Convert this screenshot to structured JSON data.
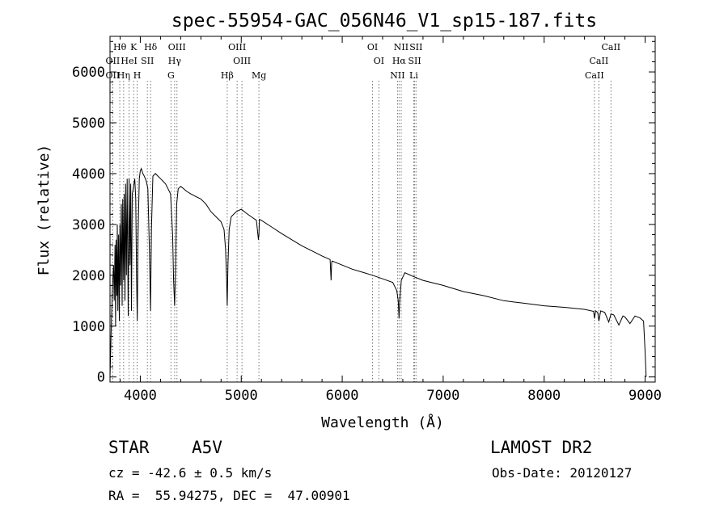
{
  "chart_data": {
    "type": "line",
    "title": "spec-55954-GAC_056N46_V1_sp15-187.fits",
    "xlabel": "Wavelength (Å)",
    "ylabel": "Flux (relative)",
    "xlim": [
      3700,
      9100
    ],
    "ylim": [
      -100,
      6700
    ],
    "xticks": [
      4000,
      5000,
      6000,
      7000,
      8000,
      9000
    ],
    "yticks": [
      0,
      1000,
      2000,
      3000,
      4000,
      5000,
      6000
    ],
    "spectrum": {
      "x": [
        3700,
        3715,
        3725,
        3735,
        3742,
        3750,
        3755,
        3760,
        3768,
        3772,
        3778,
        3785,
        3792,
        3798,
        3805,
        3812,
        3820,
        3826,
        3835,
        3840,
        3848,
        3855,
        3863,
        3870,
        3880,
        3889,
        3898,
        3905,
        3912,
        3920,
        3930,
        3945,
        3955,
        3963,
        3970,
        3978,
        3990,
        4000,
        4010,
        4025,
        4040,
        4060,
        4075,
        4090,
        4101,
        4110,
        4125,
        4150,
        4175,
        4200,
        4225,
        4250,
        4275,
        4300,
        4320,
        4330,
        4340,
        4350,
        4360,
        4375,
        4400,
        4430,
        4460,
        4500,
        4550,
        4600,
        4650,
        4700,
        4750,
        4800,
        4830,
        4845,
        4855,
        4861,
        4868,
        4880,
        4900,
        4950,
        5000,
        5050,
        5100,
        5150,
        5170,
        5175,
        5180,
        5200,
        5300,
        5400,
        5500,
        5600,
        5700,
        5800,
        5880,
        5890,
        5895,
        5900,
        6000,
        6100,
        6200,
        6300,
        6400,
        6500,
        6540,
        6555,
        6563,
        6570,
        6585,
        6620,
        6700,
        6800,
        7000,
        7200,
        7400,
        7600,
        7800,
        8000,
        8200,
        8400,
        8490,
        8498,
        8510,
        8530,
        8542,
        8560,
        8600,
        8640,
        8662,
        8690,
        8740,
        8780,
        8800,
        8850,
        8900,
        8950,
        8985,
        9000,
        9010
      ],
      "y": [
        0,
        1200,
        1800,
        2200,
        1500,
        2600,
        1000,
        2700,
        1600,
        3000,
        1300,
        2800,
        1100,
        3000,
        1800,
        3400,
        1400,
        3500,
        1900,
        3600,
        1500,
        3800,
        2000,
        3900,
        1200,
        3900,
        2200,
        3800,
        1300,
        3600,
        3700,
        3900,
        3500,
        2000,
        1100,
        2800,
        3900,
        4050,
        4100,
        4000,
        3950,
        3850,
        3700,
        2500,
        1300,
        2900,
        3950,
        4000,
        3950,
        3900,
        3850,
        3800,
        3700,
        3600,
        2800,
        1900,
        1400,
        2200,
        3400,
        3700,
        3750,
        3700,
        3650,
        3600,
        3550,
        3500,
        3400,
        3250,
        3150,
        3050,
        2900,
        2500,
        1900,
        1400,
        2200,
        2900,
        3150,
        3250,
        3300,
        3220,
        3150,
        3080,
        2700,
        2800,
        3100,
        3080,
        2950,
        2820,
        2700,
        2580,
        2480,
        2380,
        2310,
        1900,
        2250,
        2280,
        2200,
        2120,
        2060,
        2000,
        1930,
        1860,
        1700,
        1500,
        1150,
        1500,
        1900,
        2050,
        1980,
        1900,
        1800,
        1680,
        1600,
        1500,
        1450,
        1400,
        1370,
        1330,
        1290,
        1150,
        1300,
        1270,
        1100,
        1300,
        1270,
        1080,
        1240,
        1220,
        1020,
        1200,
        1180,
        1050,
        1200,
        1160,
        1100,
        500,
        0
      ]
    },
    "lines": [
      {
        "name": "Hθ",
        "wl": 3797,
        "row": 0
      },
      {
        "name": "K",
        "wl": 3934,
        "row": 0
      },
      {
        "name": "Hδ",
        "wl": 4102,
        "row": 0
      },
      {
        "name": "OIII",
        "wl": 4363,
        "row": 0
      },
      {
        "name": "OIII",
        "wl": 4959,
        "row": 0
      },
      {
        "name": "OI",
        "wl": 6300,
        "row": 0
      },
      {
        "name": "NII",
        "wl": 6584,
        "row": 0
      },
      {
        "name": "SII",
        "wl": 6731,
        "row": 0
      },
      {
        "name": "CaII",
        "wl": 8662,
        "row": 0
      },
      {
        "name": "OII",
        "wl": 3727,
        "row": 1
      },
      {
        "name": "HeI",
        "wl": 3889,
        "row": 1
      },
      {
        "name": "SII",
        "wl": 4070,
        "row": 1
      },
      {
        "name": "Hγ",
        "wl": 4340,
        "row": 1
      },
      {
        "name": "OIII",
        "wl": 5007,
        "row": 1
      },
      {
        "name": "OI",
        "wl": 6363,
        "row": 1
      },
      {
        "name": "Hα",
        "wl": 6563,
        "row": 1
      },
      {
        "name": "SII",
        "wl": 6717,
        "row": 1
      },
      {
        "name": "CaII",
        "wl": 8542,
        "row": 1
      },
      {
        "name": "OII",
        "wl": 3727,
        "row": 2
      },
      {
        "name": "Hη",
        "wl": 3835,
        "row": 2
      },
      {
        "name": "H",
        "wl": 3969,
        "row": 2
      },
      {
        "name": "G",
        "wl": 4304,
        "row": 2
      },
      {
        "name": "Hβ",
        "wl": 4861,
        "row": 2
      },
      {
        "name": "Mg",
        "wl": 5175,
        "row": 2
      },
      {
        "name": "NII",
        "wl": 6548,
        "row": 2
      },
      {
        "name": "Li",
        "wl": 6708,
        "row": 2
      },
      {
        "name": "CaII",
        "wl": 8498,
        "row": 2
      }
    ]
  },
  "info": {
    "class": "STAR",
    "subclass": "A5V",
    "cz": "cz = -42.6 ± 0.5 km/s",
    "coords": "RA =  55.94275, DEC =  47.00901",
    "survey": "LAMOST DR2",
    "obsdate": "Obs-Date: 20120127"
  }
}
